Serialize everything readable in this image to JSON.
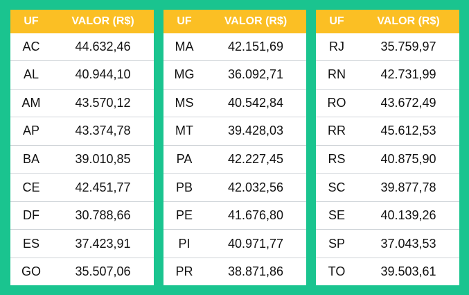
{
  "headers": {
    "uf": "UF",
    "valor": "VALOR (R$)"
  },
  "tables": [
    {
      "rows": [
        {
          "uf": "AC",
          "valor": "44.632,46"
        },
        {
          "uf": "AL",
          "valor": "40.944,10"
        },
        {
          "uf": "AM",
          "valor": "43.570,12"
        },
        {
          "uf": "AP",
          "valor": "43.374,78"
        },
        {
          "uf": "BA",
          "valor": "39.010,85"
        },
        {
          "uf": "CE",
          "valor": "42.451,77"
        },
        {
          "uf": "DF",
          "valor": "30.788,66"
        },
        {
          "uf": "ES",
          "valor": "37.423,91"
        },
        {
          "uf": "GO",
          "valor": "35.507,06"
        }
      ]
    },
    {
      "rows": [
        {
          "uf": "MA",
          "valor": "42.151,69"
        },
        {
          "uf": "MG",
          "valor": "36.092,71"
        },
        {
          "uf": "MS",
          "valor": "40.542,84"
        },
        {
          "uf": "MT",
          "valor": "39.428,03"
        },
        {
          "uf": "PA",
          "valor": "42.227,45"
        },
        {
          "uf": "PB",
          "valor": "42.032,56"
        },
        {
          "uf": "PE",
          "valor": "41.676,80"
        },
        {
          "uf": "PI",
          "valor": "40.971,77"
        },
        {
          "uf": "PR",
          "valor": "38.871,86"
        }
      ]
    },
    {
      "rows": [
        {
          "uf": "RJ",
          "valor": "35.759,97"
        },
        {
          "uf": "RN",
          "valor": "42.731,99"
        },
        {
          "uf": "RO",
          "valor": "43.672,49"
        },
        {
          "uf": "RR",
          "valor": "45.612,53"
        },
        {
          "uf": "RS",
          "valor": "40.875,90"
        },
        {
          "uf": "SC",
          "valor": "39.877,78"
        },
        {
          "uf": "SE",
          "valor": "40.139,26"
        },
        {
          "uf": "SP",
          "valor": "37.043,53"
        },
        {
          "uf": "TO",
          "valor": "39.503,61"
        }
      ]
    }
  ],
  "colors": {
    "background": "#1ac48f",
    "header": "#fbbf24",
    "header_text": "#ffffff"
  }
}
